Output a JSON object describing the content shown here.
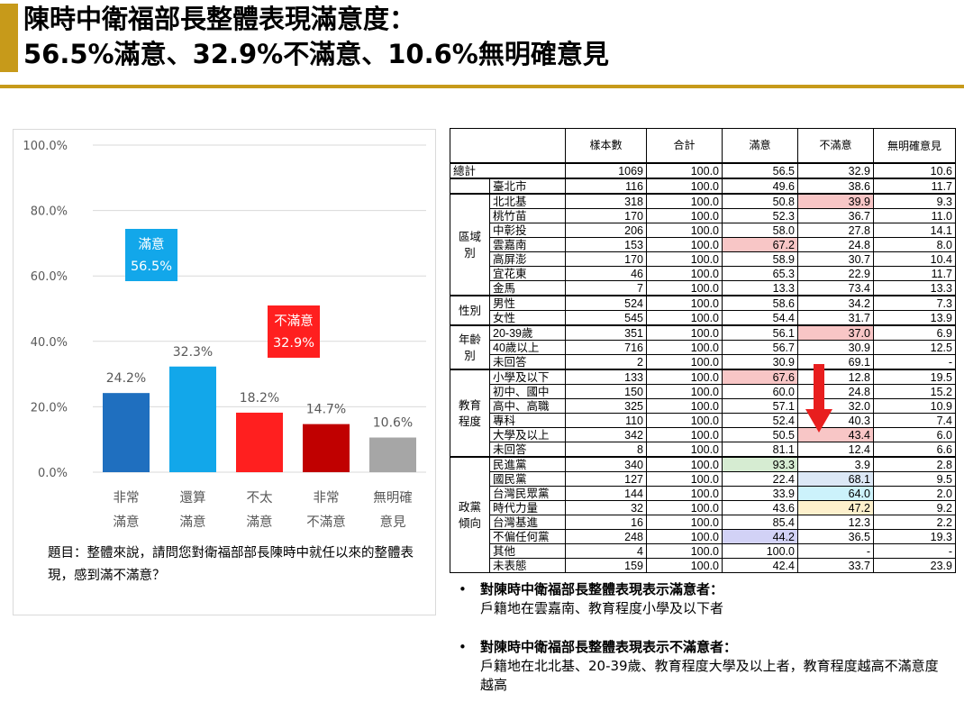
{
  "title": {
    "line1": "陳時中衛福部長整體表現滿意度：",
    "line2": "56.5%滿意、32.9%不滿意、10.6%無明確意見"
  },
  "chart_data": {
    "type": "bar",
    "ylim": [
      0,
      100
    ],
    "yticks": [
      "0.0%",
      "20.0%",
      "40.0%",
      "60.0%",
      "80.0%",
      "100.0%"
    ],
    "grid": true,
    "categories": [
      [
        "非常",
        "滿意"
      ],
      [
        "還算",
        "滿意"
      ],
      [
        "不太",
        "滿意"
      ],
      [
        "非常",
        "不滿意"
      ],
      [
        "無明確",
        "意見"
      ]
    ],
    "values": [
      24.2,
      32.3,
      18.2,
      14.7,
      10.6
    ],
    "value_labels": [
      "24.2%",
      "32.3%",
      "18.2%",
      "14.7%",
      "10.6%"
    ],
    "colors": [
      "#1f6fbf",
      "#12a7ea",
      "#ff1f1f",
      "#c00000",
      "#a6a6a6"
    ],
    "callouts": [
      {
        "label": "滿意",
        "value": "56.5%",
        "color": "#12a7ea"
      },
      {
        "label": "不滿意",
        "value": "32.9%",
        "color": "#ff1f1f"
      }
    ]
  },
  "question": "題目：整體來說，請問您對衛福部部長陳時中就任以來的整體表現，感到滿不滿意？",
  "table": {
    "headers": [
      "樣本數",
      "合計",
      "滿意",
      "不滿意",
      "無明確意見"
    ],
    "total": {
      "label": "總計",
      "values": [
        "1069",
        "100.0",
        "56.5",
        "32.9",
        "10.6"
      ]
    },
    "groups": [
      {
        "name": "",
        "rows": [
          {
            "label": "臺北市",
            "values": [
              "116",
              "100.0",
              "49.6",
              "38.6",
              "11.7"
            ]
          }
        ]
      },
      {
        "name": "區域別",
        "rows": [
          {
            "label": "北北基",
            "values": [
              "318",
              "100.0",
              "50.8",
              "39.9",
              "9.3"
            ],
            "hl": {
              "3": "red"
            }
          },
          {
            "label": "桃竹苗",
            "values": [
              "170",
              "100.0",
              "52.3",
              "36.7",
              "11.0"
            ]
          },
          {
            "label": "中彰投",
            "values": [
              "206",
              "100.0",
              "58.0",
              "27.8",
              "14.1"
            ]
          },
          {
            "label": "雲嘉南",
            "values": [
              "153",
              "100.0",
              "67.2",
              "24.8",
              "8.0"
            ],
            "hl": {
              "2": "red"
            }
          },
          {
            "label": "高屏澎",
            "values": [
              "170",
              "100.0",
              "58.9",
              "30.7",
              "10.4"
            ]
          },
          {
            "label": "宜花東",
            "values": [
              "46",
              "100.0",
              "65.3",
              "22.9",
              "11.7"
            ]
          },
          {
            "label": "金馬",
            "values": [
              "7",
              "100.0",
              "13.3",
              "73.4",
              "13.3"
            ]
          }
        ]
      },
      {
        "name": "性別",
        "rows": [
          {
            "label": "男性",
            "values": [
              "524",
              "100.0",
              "58.6",
              "34.2",
              "7.3"
            ]
          },
          {
            "label": "女性",
            "values": [
              "545",
              "100.0",
              "54.4",
              "31.7",
              "13.9"
            ]
          }
        ]
      },
      {
        "name": "年齡別",
        "rows": [
          {
            "label": "20-39歲",
            "values": [
              "351",
              "100.0",
              "56.1",
              "37.0",
              "6.9"
            ],
            "hl": {
              "3": "red"
            }
          },
          {
            "label": "40歲以上",
            "values": [
              "716",
              "100.0",
              "56.7",
              "30.9",
              "12.5"
            ]
          },
          {
            "label": "未回答",
            "values": [
              "2",
              "100.0",
              "30.9",
              "69.1",
              "-"
            ]
          }
        ]
      },
      {
        "name": "教育程度",
        "rows": [
          {
            "label": "小學及以下",
            "values": [
              "133",
              "100.0",
              "67.6",
              "12.8",
              "19.5"
            ],
            "hl": {
              "2": "red"
            }
          },
          {
            "label": "初中、國中",
            "values": [
              "150",
              "100.0",
              "60.0",
              "24.8",
              "15.2"
            ]
          },
          {
            "label": "高中、高職",
            "values": [
              "325",
              "100.0",
              "57.1",
              "32.0",
              "10.9"
            ]
          },
          {
            "label": "專科",
            "values": [
              "110",
              "100.0",
              "52.4",
              "40.3",
              "7.4"
            ]
          },
          {
            "label": "大學及以上",
            "values": [
              "342",
              "100.0",
              "50.5",
              "43.4",
              "6.0"
            ],
            "hl": {
              "3": "red"
            }
          },
          {
            "label": "未回答",
            "values": [
              "8",
              "100.0",
              "81.1",
              "12.4",
              "6.6"
            ]
          }
        ]
      },
      {
        "name": "政黨傾向",
        "rows": [
          {
            "label": "民進黨",
            "values": [
              "340",
              "100.0",
              "93.3",
              "3.9",
              "2.8"
            ],
            "hl": {
              "2": "green"
            }
          },
          {
            "label": "國民黨",
            "values": [
              "127",
              "100.0",
              "22.4",
              "68.1",
              "9.5"
            ],
            "hl": {
              "3": "lblue"
            }
          },
          {
            "label": "台灣民眾黨",
            "values": [
              "144",
              "100.0",
              "33.9",
              "64.0",
              "2.0"
            ],
            "hl": {
              "3": "cyan"
            }
          },
          {
            "label": "時代力量",
            "values": [
              "32",
              "100.0",
              "43.6",
              "47.2",
              "9.2"
            ],
            "hl": {
              "3": "yellow"
            }
          },
          {
            "label": "台灣基進",
            "values": [
              "16",
              "100.0",
              "85.4",
              "12.3",
              "2.2"
            ]
          },
          {
            "label": "不偏任何黨",
            "values": [
              "248",
              "100.0",
              "44.2",
              "36.5",
              "19.3"
            ],
            "hl": {
              "2": "purple"
            }
          },
          {
            "label": "其他",
            "values": [
              "4",
              "100.0",
              "100.0",
              "-",
              "-"
            ]
          },
          {
            "label": "未表態",
            "values": [
              "159",
              "100.0",
              "42.4",
              "33.7",
              "23.9"
            ]
          }
        ]
      }
    ]
  },
  "notes": [
    {
      "bullet": "•",
      "head": "對陳時中衛福部長整體表現表示滿意者：",
      "body": "戶籍地在雲嘉南、教育程度小學及以下者"
    },
    {
      "bullet": "•",
      "head": "對陳時中衛福部長整體表現表示不滿意者：",
      "body": "戶籍地在北北基、20-39歲、教育程度大學及以上者，教育程度越高不滿意度越高"
    }
  ],
  "arrow_color": "#e81e1e"
}
